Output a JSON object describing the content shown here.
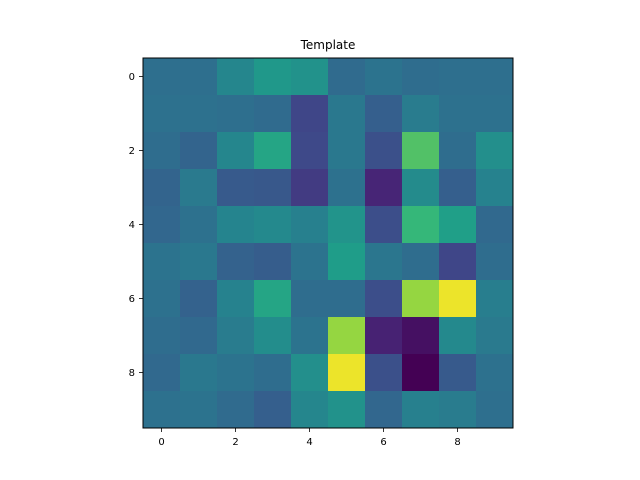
{
  "chart_data": {
    "type": "heatmap",
    "title": "Template",
    "xlabel": "",
    "ylabel": "",
    "colormap": "viridis",
    "rows": 10,
    "cols": 10,
    "value_range": [
      0,
      1
    ],
    "x_ticks": [
      0,
      2,
      4,
      6,
      8
    ],
    "y_ticks": [
      0,
      2,
      4,
      6,
      8
    ],
    "grid": false,
    "values": [
      [
        0.41,
        0.41,
        0.52,
        0.6,
        0.57,
        0.39,
        0.43,
        0.4,
        0.41,
        0.41
      ],
      [
        0.42,
        0.42,
        0.41,
        0.39,
        0.24,
        0.45,
        0.34,
        0.47,
        0.42,
        0.42
      ],
      [
        0.4,
        0.36,
        0.52,
        0.66,
        0.25,
        0.45,
        0.28,
        0.79,
        0.4,
        0.56
      ],
      [
        0.36,
        0.46,
        0.32,
        0.31,
        0.2,
        0.42,
        0.12,
        0.54,
        0.34,
        0.5
      ],
      [
        0.37,
        0.42,
        0.51,
        0.53,
        0.49,
        0.58,
        0.27,
        0.75,
        0.63,
        0.38
      ],
      [
        0.43,
        0.45,
        0.35,
        0.33,
        0.43,
        0.62,
        0.44,
        0.4,
        0.24,
        0.4
      ],
      [
        0.42,
        0.35,
        0.5,
        0.66,
        0.4,
        0.4,
        0.27,
        0.88,
        0.98,
        0.48
      ],
      [
        0.4,
        0.38,
        0.47,
        0.55,
        0.43,
        0.88,
        0.11,
        0.05,
        0.53,
        0.46
      ],
      [
        0.38,
        0.45,
        0.43,
        0.4,
        0.56,
        0.98,
        0.28,
        0.0,
        0.32,
        0.42
      ],
      [
        0.42,
        0.43,
        0.39,
        0.34,
        0.52,
        0.57,
        0.37,
        0.49,
        0.47,
        0.41
      ]
    ]
  }
}
